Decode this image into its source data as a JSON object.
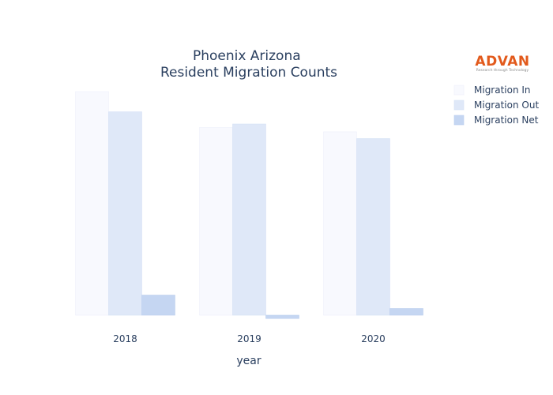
{
  "logo": {
    "name": "ADVAN",
    "tagline": "Research through Technology",
    "color": "#e25a1c"
  },
  "chart_data": {
    "type": "bar",
    "title": [
      "Phoenix Arizona",
      "Resident Migration Counts"
    ],
    "xlabel": "year",
    "ylabel": "",
    "categories": [
      "2018",
      "2019",
      "2020"
    ],
    "series": [
      {
        "name": "Migration In",
        "values": [
          100,
          84,
          82
        ],
        "color": "#f8f9fe",
        "stroke": "#eef0fa"
      },
      {
        "name": "Migration Out",
        "values": [
          91,
          85.5,
          79
        ],
        "color": "#dfe8f8",
        "stroke": "#d6e1f5"
      },
      {
        "name": "Migration Net",
        "values": [
          9,
          -1.5,
          3
        ],
        "color": "#c5d6f2",
        "stroke": "#bccfee"
      }
    ],
    "ylim": [
      -2,
      100
    ],
    "grid": false,
    "legend": "top-right"
  }
}
